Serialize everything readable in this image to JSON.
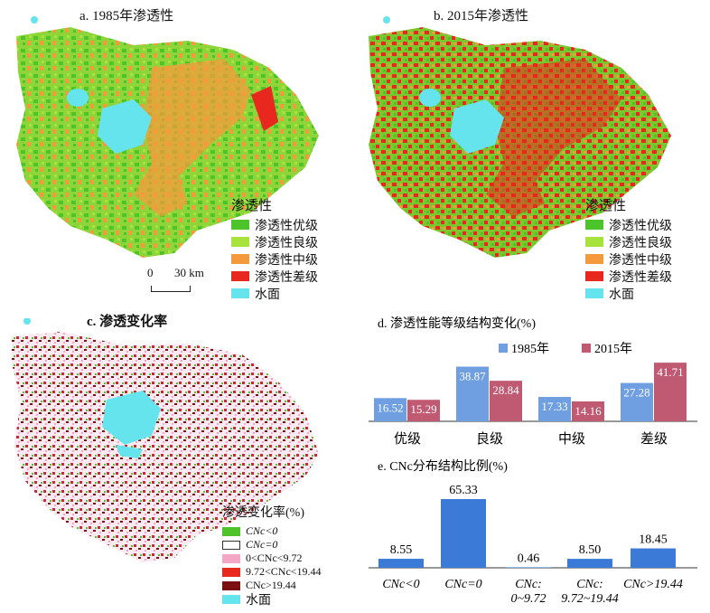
{
  "panel_a": {
    "title": "a. 1985年渗透性"
  },
  "panel_b": {
    "title": "b. 2015年渗透性"
  },
  "panel_c": {
    "title": "c. 渗透变化率"
  },
  "permeability_legend": {
    "title": "渗透性",
    "items": [
      {
        "label": "渗透性优级",
        "color": "#4cc42a"
      },
      {
        "label": "渗透性良级",
        "color": "#a8e23c"
      },
      {
        "label": "渗透性中级",
        "color": "#f59a3c"
      },
      {
        "label": "渗透性差级",
        "color": "#e8281e"
      },
      {
        "label": "水面",
        "color": "#66e4ee"
      }
    ]
  },
  "change_legend": {
    "title": "渗透变化率(%)",
    "items": [
      {
        "label": "CNc<0",
        "color": "#4cc42a"
      },
      {
        "label": "CNc=0",
        "color": "#ffffff"
      },
      {
        "label": "0<CNc<9.72",
        "color": "#f4a6c6"
      },
      {
        "label": "9.72<CNc<19.44",
        "color": "#e8281e"
      },
      {
        "label": "CNc>19.44",
        "color": "#7a1010"
      },
      {
        "label": "水面",
        "color": "#66e4ee"
      }
    ]
  },
  "scale_bar": {
    "zero": "0",
    "value": "30 km"
  },
  "chart_data": [
    {
      "type": "bar",
      "title": "d. 渗透性能等级结构变化(%)",
      "categories": [
        "优级",
        "良级",
        "中级",
        "差级"
      ],
      "series": [
        {
          "name": "1985年",
          "values": [
            16.52,
            38.87,
            17.33,
            27.28
          ],
          "color": "#6f9fe0"
        },
        {
          "name": "2015年",
          "values": [
            15.29,
            28.84,
            14.16,
            41.71
          ],
          "color": "#c05a72"
        }
      ],
      "legend_position": "top",
      "grid": false
    },
    {
      "type": "bar",
      "title": "e. CNc分布结构比例(%)",
      "categories": [
        "CNc<0",
        "CNc=0",
        "CNc:\n0~9.72",
        "CNc:\n9.72~19.44",
        "CNc>19.44"
      ],
      "values": [
        8.55,
        65.33,
        0.46,
        8.5,
        18.45
      ],
      "color": "#3c7ad8",
      "grid": false
    }
  ]
}
